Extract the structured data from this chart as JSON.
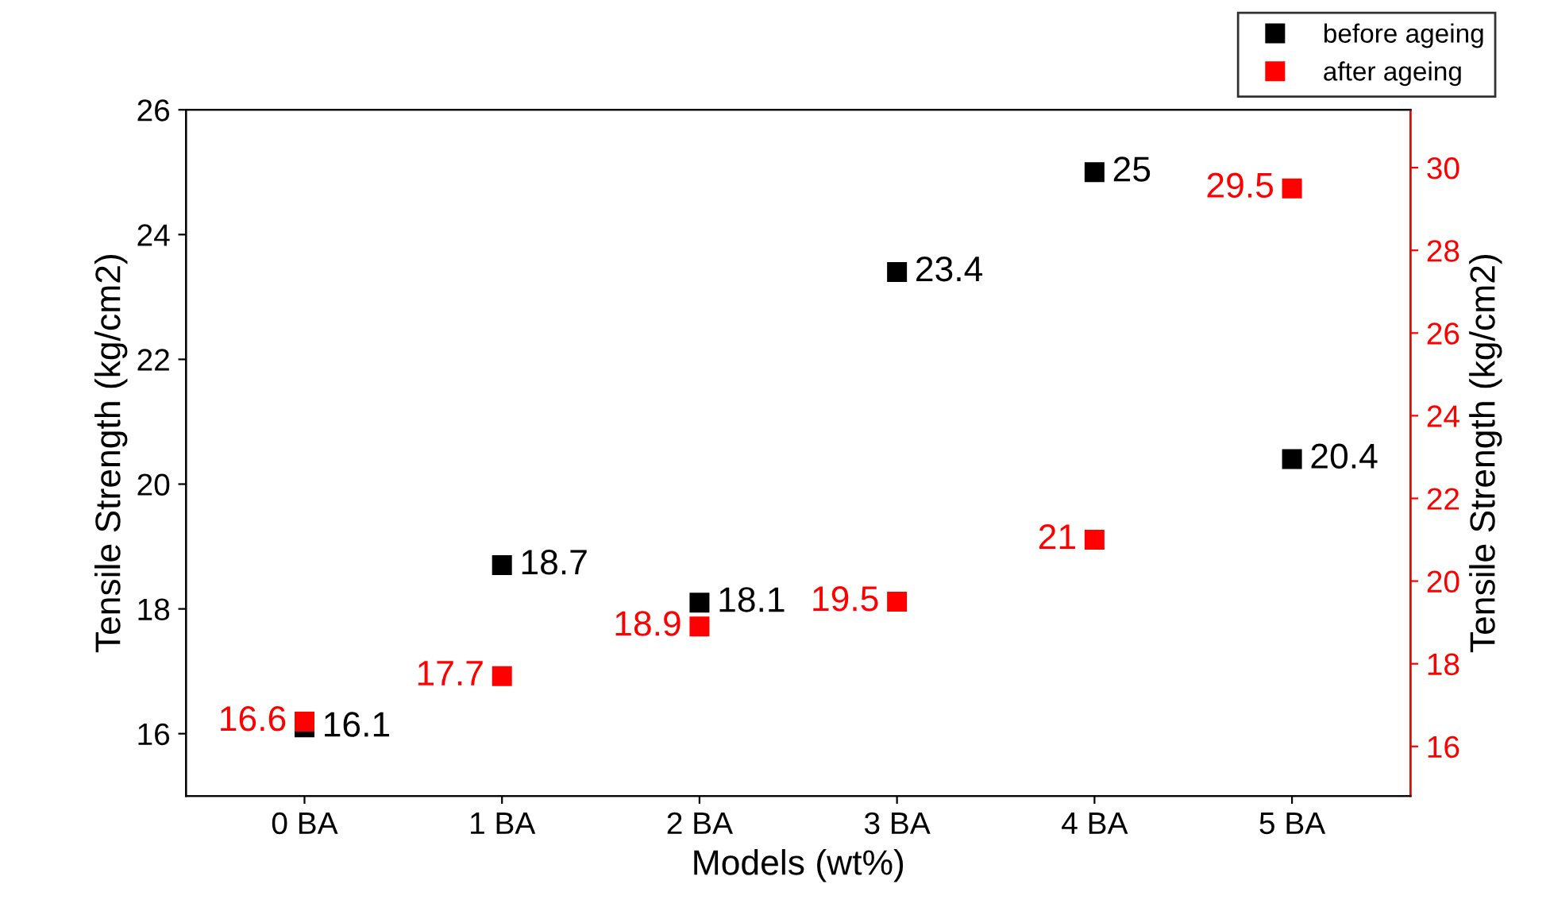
{
  "chart_data": {
    "type": "scatter",
    "xlabel": "Models (wt%)",
    "ylabel": "Tensile Strength (kg/cm2)",
    "y2label": "Tensile Strength (kg/cm2)",
    "categories": [
      "0 BA",
      "1 BA",
      "2 BA",
      "3 BA",
      "4 BA",
      "5 BA"
    ],
    "series": [
      {
        "name": "before ageing",
        "color": "#000000",
        "values": [
          16.1,
          18.7,
          18.1,
          23.4,
          25,
          20.4
        ]
      },
      {
        "name": "after ageing",
        "color": "#ff0000",
        "axis": "y2",
        "values": [
          16.6,
          17.7,
          18.9,
          19.5,
          21,
          29.5
        ]
      }
    ],
    "ylim": [
      15,
      26
    ],
    "yticks": [
      16,
      18,
      20,
      22,
      24,
      26
    ],
    "y2lim": [
      14.8,
      31.4
    ],
    "y2ticks": [
      16,
      18,
      20,
      22,
      24,
      26,
      28,
      30
    ],
    "marker": "square",
    "data_labels": true,
    "grid": false,
    "legend": "top right"
  }
}
